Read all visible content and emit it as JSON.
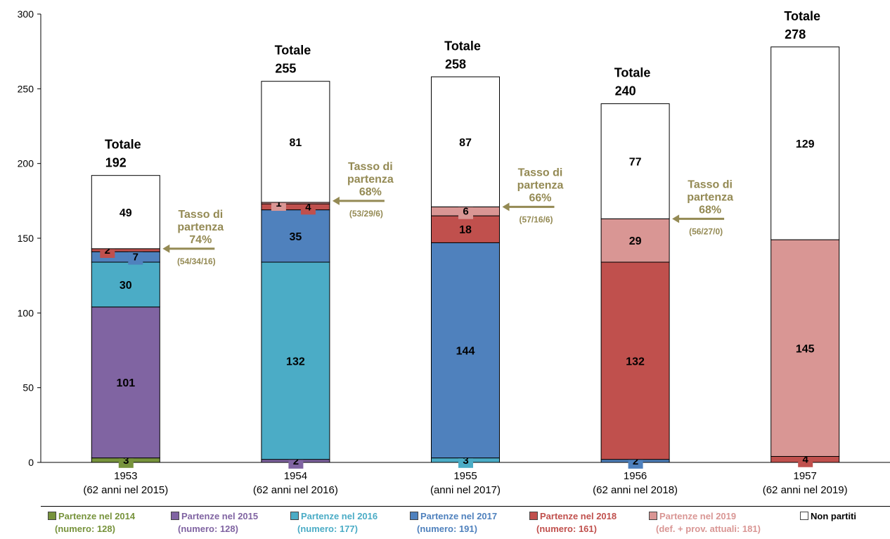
{
  "chart_data": {
    "type": "bar",
    "stacked": true,
    "ylim": [
      0,
      300
    ],
    "yticks": [
      0,
      50,
      100,
      150,
      200,
      250,
      300
    ],
    "categories": [
      {
        "year": "1953",
        "sub": "(62 anni nel 2015)"
      },
      {
        "year": "1954",
        "sub": "(62 anni nel 2016)"
      },
      {
        "year": "1955",
        "sub": "(anni nel 2017)"
      },
      {
        "year": "1956",
        "sub": "(62 anni nel 2018)"
      },
      {
        "year": "1957",
        "sub": "(62 anni nel 2019)"
      }
    ],
    "series": [
      {
        "name": "Partenze nel 2014",
        "count": "(numero: 128)",
        "color": "#77933c",
        "values": [
          3,
          0,
          0,
          0,
          0
        ]
      },
      {
        "name": "Partenze nel 2015",
        "count": "(numero: 128)",
        "color": "#8064a2",
        "values": [
          101,
          2,
          0,
          0,
          0
        ]
      },
      {
        "name": "Partenze nel 2016",
        "count": "(numero: 177)",
        "color": "#4bacc6",
        "values": [
          30,
          132,
          3,
          0,
          0
        ]
      },
      {
        "name": "Partenze nel 2017",
        "count": "(numero: 191)",
        "color": "#4f81bd",
        "values": [
          7,
          35,
          144,
          2,
          0
        ]
      },
      {
        "name": "Partenze nel 2018",
        "count": "(numero: 161)",
        "color": "#c0504d",
        "values": [
          2,
          4,
          18,
          132,
          4
        ]
      },
      {
        "name": "Partenze nel 2019",
        "count": "(def. + prov. attuali: 181)",
        "color": "#d99694",
        "values": [
          0,
          1,
          6,
          29,
          145
        ]
      },
      {
        "name": "Non partiti",
        "count": "",
        "color": "#ffffff",
        "values": [
          49,
          81,
          87,
          77,
          129
        ]
      }
    ],
    "totals": [
      {
        "label": "Totale",
        "value": "192"
      },
      {
        "label": "Totale",
        "value": "255"
      },
      {
        "label": "Totale",
        "value": "258"
      },
      {
        "label": "Totale",
        "value": "240"
      },
      {
        "label": "Totale",
        "value": "278"
      }
    ],
    "annotations": [
      {
        "bar": 0,
        "lines": [
          "Tasso di",
          "partenza",
          "74%"
        ],
        "detail": "(54/34/16)",
        "at_value": 143
      },
      {
        "bar": 1,
        "lines": [
          "Tasso di",
          "partenza",
          "68%"
        ],
        "detail": "(53/29/6)",
        "at_value": 175
      },
      {
        "bar": 2,
        "lines": [
          "Tasso di",
          "partenza",
          "66%"
        ],
        "detail": "(57/16/6)",
        "at_value": 171
      },
      {
        "bar": 3,
        "lines": [
          "Tasso di",
          "partenza",
          "68%"
        ],
        "detail": "(56/27/0)",
        "at_value": 163
      }
    ],
    "annotation_color": "#948a54"
  }
}
